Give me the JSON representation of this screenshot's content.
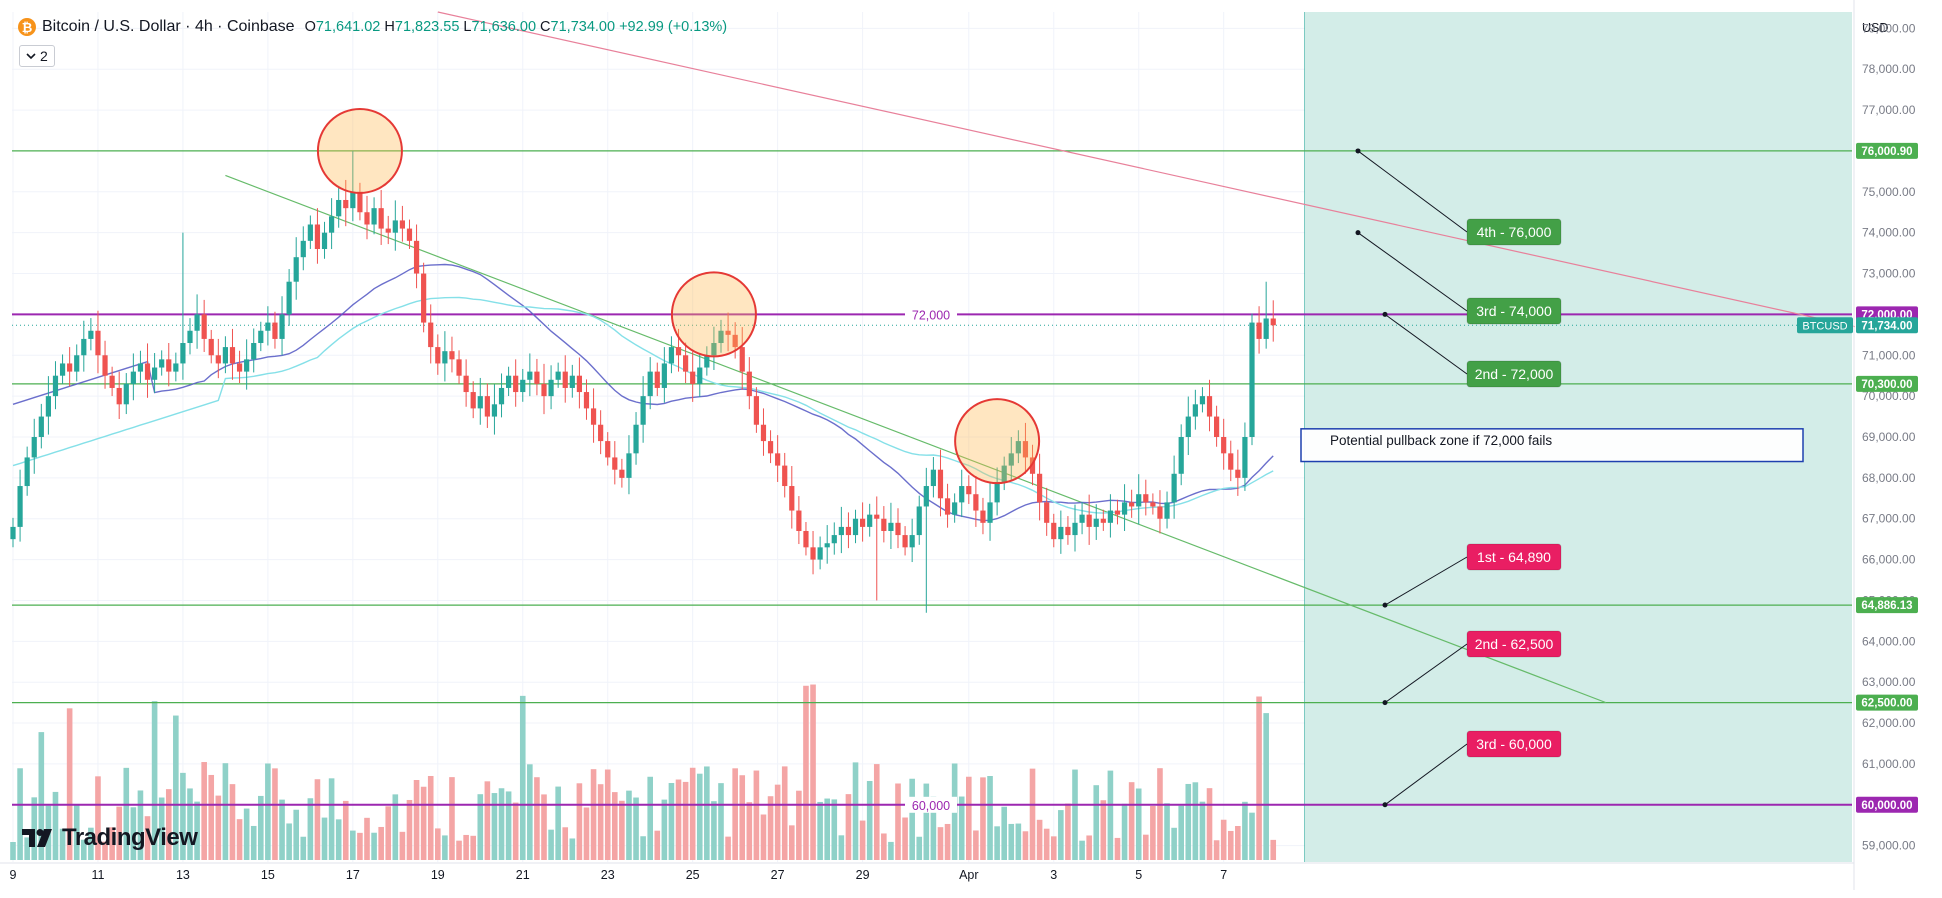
{
  "header": {
    "symbol": "Bitcoin / U.S. Dollar",
    "interval": "4h",
    "exchange": "Coinbase",
    "coin_glyph": "₿",
    "ohlc": {
      "open_label": "O",
      "open": "71,641.02",
      "high_label": "H",
      "high": "71,823.55",
      "low_label": "L",
      "low": "71,636.00",
      "close_label": "C",
      "close": "71,734.00",
      "change": "+92.99 (+0.13%)"
    }
  },
  "indicators_button": {
    "count": "2",
    "icon": "chevron-down-icon"
  },
  "branding": {
    "name": "TradingView"
  },
  "colors": {
    "up": "#26a69a",
    "down": "#ef5350",
    "up_vol": "#8fd1c8",
    "down_vol": "#f4a5a5",
    "support": "#4caf50",
    "key_level": "#9c27b0",
    "downtrend": "#e8809a",
    "forecast_zone": "#d3ede8",
    "ma_slow": "#5b5fc7",
    "ma_fast": "#85e0e8"
  },
  "chart_data": {
    "type": "candlestick",
    "title": "Bitcoin / U.S. Dollar · 4h · Coinbase",
    "currency": "USD",
    "ylim": [
      58600,
      79400
    ],
    "y_ticks": [
      59000,
      60000,
      61000,
      62000,
      63000,
      64000,
      65000,
      66000,
      67000,
      68000,
      69000,
      70000,
      71000,
      72000,
      73000,
      74000,
      75000,
      76000,
      77000,
      78000,
      79000
    ],
    "x_ticks": [
      {
        "label": "9",
        "bar": 0
      },
      {
        "label": "11",
        "bar": 12
      },
      {
        "label": "13",
        "bar": 24
      },
      {
        "label": "15",
        "bar": 36
      },
      {
        "label": "17",
        "bar": 48
      },
      {
        "label": "19",
        "bar": 60
      },
      {
        "label": "21",
        "bar": 72
      },
      {
        "label": "23",
        "bar": 84
      },
      {
        "label": "25",
        "bar": 96
      },
      {
        "label": "27",
        "bar": 108
      },
      {
        "label": "29",
        "bar": 120
      },
      {
        "label": "Apr",
        "bar": 135
      },
      {
        "label": "3",
        "bar": 147
      },
      {
        "label": "5",
        "bar": 159
      },
      {
        "label": "7",
        "bar": 171
      }
    ],
    "closes": [
      66800,
      67800,
      68500,
      69000,
      69500,
      70000,
      70500,
      70800,
      70600,
      71000,
      71400,
      71600,
      71000,
      70500,
      70200,
      69800,
      70300,
      70600,
      70800,
      70400,
      70700,
      70900,
      70600,
      70800,
      71300,
      71600,
      72000,
      71400,
      71000,
      70800,
      71200,
      70800,
      70600,
      70900,
      71300,
      71600,
      71800,
      71400,
      72000,
      72800,
      73400,
      73800,
      74200,
      73600,
      74000,
      74400,
      74800,
      74600,
      75000,
      74500,
      74200,
      74600,
      74100,
      74000,
      74300,
      74100,
      73800,
      73000,
      71800,
      71200,
      70800,
      71100,
      70900,
      70500,
      70100,
      69700,
      70000,
      69500,
      69800,
      70200,
      70500,
      70100,
      70400,
      70600,
      70300,
      70000,
      70400,
      70600,
      70200,
      70500,
      70100,
      69700,
      69300,
      68900,
      68500,
      68200,
      68000,
      68600,
      69300,
      70000,
      70600,
      70200,
      70800,
      71200,
      71000,
      70600,
      70300,
      70700,
      71000,
      71300,
      71600,
      71500,
      71200,
      70600,
      70000,
      69300,
      68900,
      68600,
      68300,
      67800,
      67200,
      66700,
      66300,
      66000,
      66300,
      66400,
      66600,
      66800,
      66600,
      67000,
      66800,
      67100,
      67000,
      66700,
      66900,
      66600,
      66300,
      66600,
      67300,
      67800,
      68200,
      67500,
      67100,
      67400,
      67800,
      67600,
      67200,
      66900,
      67400,
      67900,
      68300,
      68600,
      68900,
      68500,
      68100,
      67400,
      66900,
      66500,
      66800,
      66600,
      66900,
      67100,
      66800,
      67000,
      66900,
      67200,
      67100,
      67400,
      67300,
      67600,
      67400,
      67300,
      67000,
      67400,
      68100,
      69000,
      69500,
      69800,
      70000,
      69500,
      69000,
      68600,
      68200,
      68000,
      69000,
      71800,
      71400,
      71900,
      71734
    ],
    "support_levels": [
      {
        "value": 76000.9,
        "label": "76,000.90"
      },
      {
        "value": 70300.0,
        "label": "70,300.00"
      },
      {
        "value": 64886.13,
        "label": "64,886.13"
      },
      {
        "value": 62500.0,
        "label": "62,500.00"
      }
    ],
    "key_levels": [
      {
        "value": 72000,
        "label": "72,000",
        "axis_label": "72,000.00"
      },
      {
        "value": 60000,
        "label": "60,000",
        "axis_label": "60,000.00"
      }
    ],
    "last_price": {
      "symbol": "BTCUSD",
      "value": 71734,
      "label": "71,734.00"
    },
    "targets_up": [
      {
        "label": "4th - 76,000",
        "value": 76000
      },
      {
        "label": "3rd - 74,000",
        "value": 74000
      },
      {
        "label": "2nd - 72,000",
        "value": 72000
      }
    ],
    "targets_down": [
      {
        "label": "1st - 64,890",
        "value": 64890
      },
      {
        "label": "2nd - 62,500",
        "value": 62500
      },
      {
        "label": "3rd - 60,000",
        "value": 60000
      }
    ],
    "highlight_circles": [
      {
        "bar": 49,
        "value": 76000
      },
      {
        "bar": 99,
        "value": 72000
      },
      {
        "bar": 139,
        "value": 68900
      }
    ],
    "annotation": {
      "text": "Potential pullback zone if 72,000 fails",
      "range": [
        68400,
        69200
      ]
    },
    "trendlines": [
      {
        "name": "downtrend-resistance",
        "from": {
          "bar": 60,
          "value": 79400
        },
        "to": {
          "bar": 281,
          "value": 70900
        }
      },
      {
        "name": "green-trendline",
        "from": {
          "bar": 30,
          "value": 75400
        },
        "to": {
          "bar": 225,
          "value": 62500
        }
      }
    ]
  }
}
